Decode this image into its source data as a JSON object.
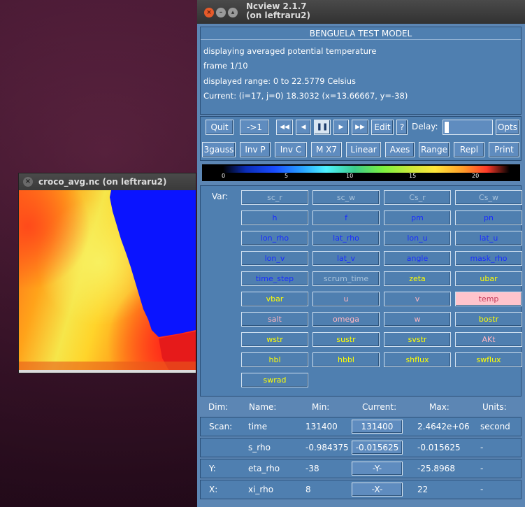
{
  "image_window": {
    "title": "croco_avg.nc (on leftraru2)",
    "close_glyph": "×"
  },
  "ncview": {
    "title_line1": "Ncview 2.1.7",
    "title_line2": "(on leftraru2)",
    "model_title": "BENGUELA TEST MODEL",
    "info": {
      "displaying": "displaying averaged potential temperature",
      "frame": "frame 1/10",
      "range": "displayed range: 0 to 22.5779 Celsius",
      "current": "Current: (i=17, j=0) 18.3032 (x=13.66667, y=-38)"
    },
    "controls": {
      "quit": "Quit",
      "goto": "->1",
      "rewind": "◀◀",
      "back": "◀",
      "pause": "❚❚",
      "forward": "▶",
      "fastforward": "▶▶",
      "edit": "Edit",
      "help": "?",
      "delay_label": "Delay:",
      "opts": "Opts"
    },
    "options": [
      "3gauss",
      "Inv P",
      "Inv C",
      "M X7",
      "Linear",
      "Axes",
      "Range",
      "Repl",
      "Print"
    ],
    "colorbar_ticks": [
      "0",
      "5",
      "10",
      "15",
      "20"
    ],
    "var_label": "Var:",
    "variables": [
      {
        "name": "sc_r",
        "color": "gray"
      },
      {
        "name": "sc_w",
        "color": "gray"
      },
      {
        "name": "Cs_r",
        "color": "gray"
      },
      {
        "name": "Cs_w",
        "color": "gray"
      },
      {
        "name": "h",
        "color": "blue"
      },
      {
        "name": "f",
        "color": "blue"
      },
      {
        "name": "pm",
        "color": "blue"
      },
      {
        "name": "pn",
        "color": "blue"
      },
      {
        "name": "lon_rho",
        "color": "blue"
      },
      {
        "name": "lat_rho",
        "color": "blue"
      },
      {
        "name": "lon_u",
        "color": "blue"
      },
      {
        "name": "lat_u",
        "color": "blue"
      },
      {
        "name": "lon_v",
        "color": "blue"
      },
      {
        "name": "lat_v",
        "color": "blue"
      },
      {
        "name": "angle",
        "color": "blue"
      },
      {
        "name": "mask_rho",
        "color": "blue"
      },
      {
        "name": "time_step",
        "color": "blue"
      },
      {
        "name": "scrum_time",
        "color": "gray"
      },
      {
        "name": "zeta",
        "color": "yellow"
      },
      {
        "name": "ubar",
        "color": "yellow"
      },
      {
        "name": "vbar",
        "color": "yellow"
      },
      {
        "name": "u",
        "color": "pink"
      },
      {
        "name": "v",
        "color": "pink"
      },
      {
        "name": "temp",
        "color": "selected"
      },
      {
        "name": "salt",
        "color": "pink"
      },
      {
        "name": "omega",
        "color": "pink"
      },
      {
        "name": "w",
        "color": "pink"
      },
      {
        "name": "bostr",
        "color": "yellow"
      },
      {
        "name": "wstr",
        "color": "yellow"
      },
      {
        "name": "sustr",
        "color": "yellow"
      },
      {
        "name": "svstr",
        "color": "yellow"
      },
      {
        "name": "AKt",
        "color": "pink"
      },
      {
        "name": "hbl",
        "color": "yellow"
      },
      {
        "name": "hbbl",
        "color": "yellow"
      },
      {
        "name": "shflux",
        "color": "yellow"
      },
      {
        "name": "swflux",
        "color": "yellow"
      },
      {
        "name": "swrad",
        "color": "yellow"
      }
    ],
    "dims_header": [
      "Dim:",
      "Name:",
      "Min:",
      "Current:",
      "Max:",
      "Units:"
    ],
    "dims": [
      {
        "dim": "Scan:",
        "name": "time",
        "min": "131400",
        "current": "131400",
        "max": "2.4642e+06",
        "units": "second"
      },
      {
        "dim": "",
        "name": "s_rho",
        "min": "-0.984375",
        "current": "-0.015625",
        "max": "-0.015625",
        "units": "-"
      },
      {
        "dim": "Y:",
        "name": "eta_rho",
        "min": "-38",
        "current": "-Y-",
        "max": "-25.8968",
        "units": "-"
      },
      {
        "dim": "X:",
        "name": "xi_rho",
        "min": "8",
        "current": "-X-",
        "max": "22",
        "units": "-"
      }
    ]
  },
  "colors": {
    "panel": "#4f7fb0",
    "selected": "#ffc4cc",
    "desktop": "#4a1a35"
  }
}
